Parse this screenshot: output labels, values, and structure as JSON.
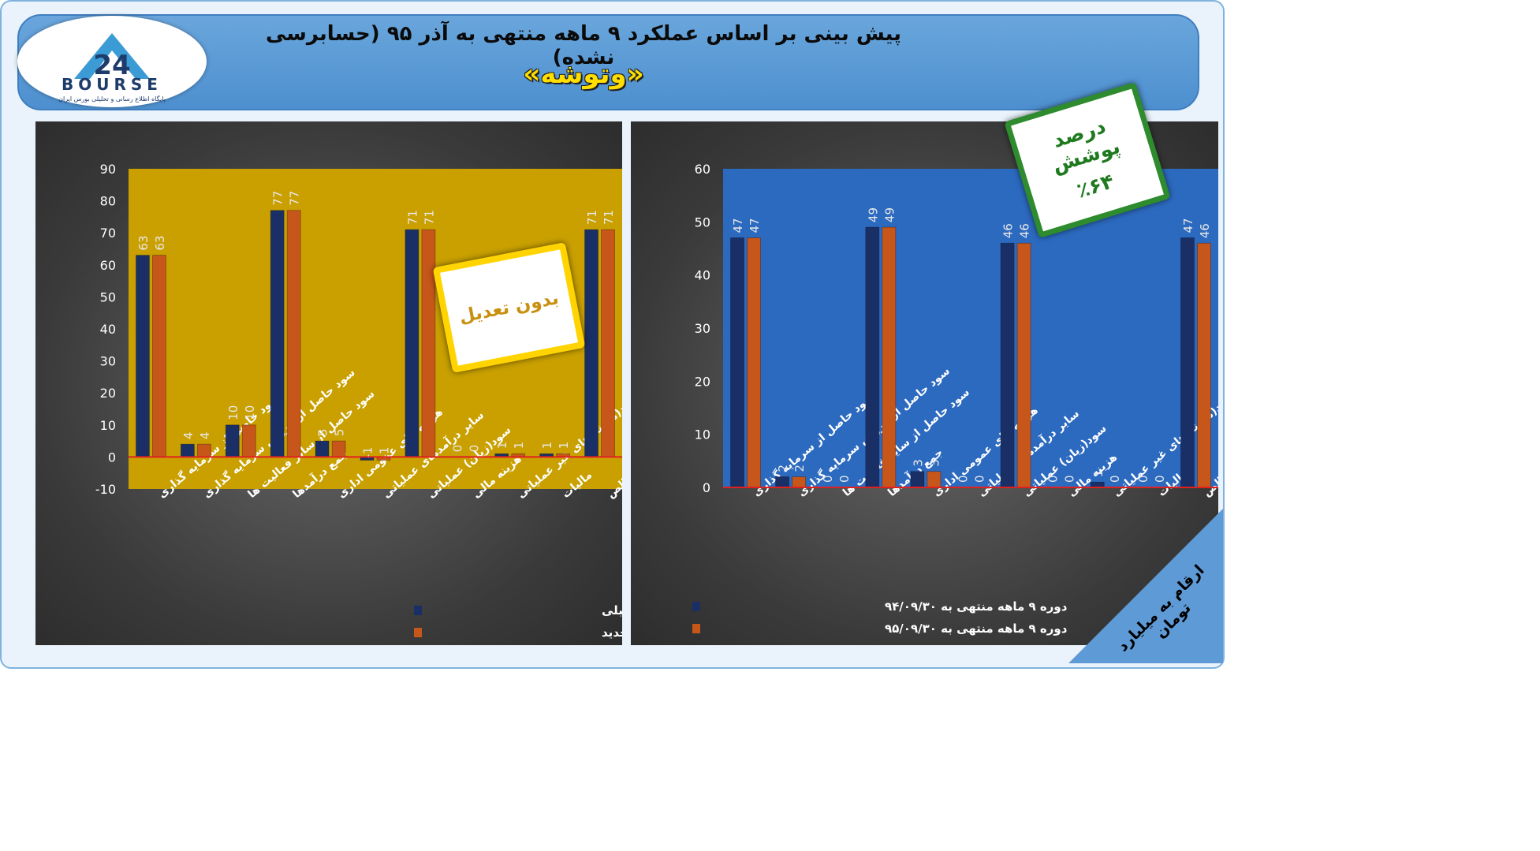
{
  "header": {
    "title": "پیش بینی بر اساس عملکرد ۹ ماهه منتهی به آذر ۹۵ (حسابرسی نشده)",
    "symbol": "«وتوشه»"
  },
  "logo": {
    "brand": "BOURSE",
    "tagline": "پایگاه اطلاع رسانی و تحلیلی بورس ایران",
    "colors": {
      "mark": "#3b9bd4",
      "text": "#1d3b6b"
    }
  },
  "stamps": {
    "no_adjustment": "بدون تعدیل",
    "coverage_label": "درصد پوشش",
    "coverage_value": "٪۶۴"
  },
  "unit_note": "ارقام به میلیارد تومان",
  "colors": {
    "series_dark": "#1a2f66",
    "series_orange": "#c7561a",
    "left_plot_bg": "#c9a000",
    "right_plot_bg": "#2c6ac0",
    "zero_line": "#e02020"
  },
  "chart_data": [
    {
      "type": "bar",
      "categories": [
        "سود حاصل از سرمایه گذاری",
        "سود حاصل از فروش سرمایه گذاری",
        "سود حاصل از سایر فعالیت ها",
        "جمع درآمدها",
        "هزینه های عمومی اداری",
        "سایر درآمدهای عملیاتی",
        "سود(زیان) عملیاتی",
        "هزینه مالی",
        "درآمد(هزینه)های غیر عملیاتی",
        "مالیات",
        "سود خالص"
      ],
      "series": [
        {
          "name": "پیش بینی بر اساس گزارش قبلی",
          "values": [
            63,
            4,
            10,
            77,
            5,
            -1,
            71,
            0,
            1,
            1,
            71
          ]
        },
        {
          "name": "پیش بینی بر اساس گزارش جدید",
          "values": [
            63,
            4,
            10,
            77,
            5,
            -1,
            71,
            0,
            1,
            1,
            71
          ]
        }
      ],
      "ylim": [
        -10,
        90
      ],
      "yticks": [
        -10,
        0,
        10,
        20,
        30,
        40,
        50,
        60,
        70,
        80,
        90
      ],
      "legend": "bottom-right",
      "grid": false
    },
    {
      "type": "bar",
      "categories": [
        "سود حاصل از سرمایه گذاری",
        "سود حاصل از فروش سرمایه گذاری",
        "سود حاصل از سایر فعالیت ها",
        "جمع درآمدها",
        "هزینه های عمومی اداری",
        "سایر درآمدهای عملیاتی",
        "سود(زیان) عملیاتی",
        "هزینه مالی",
        "درآمد(هزینه)های غیر عملیاتی",
        "مالیات",
        "سود خالص"
      ],
      "series": [
        {
          "name": "دوره ۹ ماهه منتهی به ۹۴/۰۹/۳۰",
          "values": [
            47,
            2,
            0,
            49,
            3,
            0,
            46,
            0,
            1,
            0,
            47
          ]
        },
        {
          "name": "دوره ۹ ماهه منتهی به ۹۵/۰۹/۳۰",
          "values": [
            47,
            2,
            0,
            49,
            3,
            0,
            46,
            0,
            0,
            0,
            46
          ]
        }
      ],
      "ylim": [
        0,
        60
      ],
      "yticks": [
        0,
        10,
        20,
        30,
        40,
        50,
        60
      ],
      "legend": "bottom-left",
      "grid": false
    }
  ]
}
